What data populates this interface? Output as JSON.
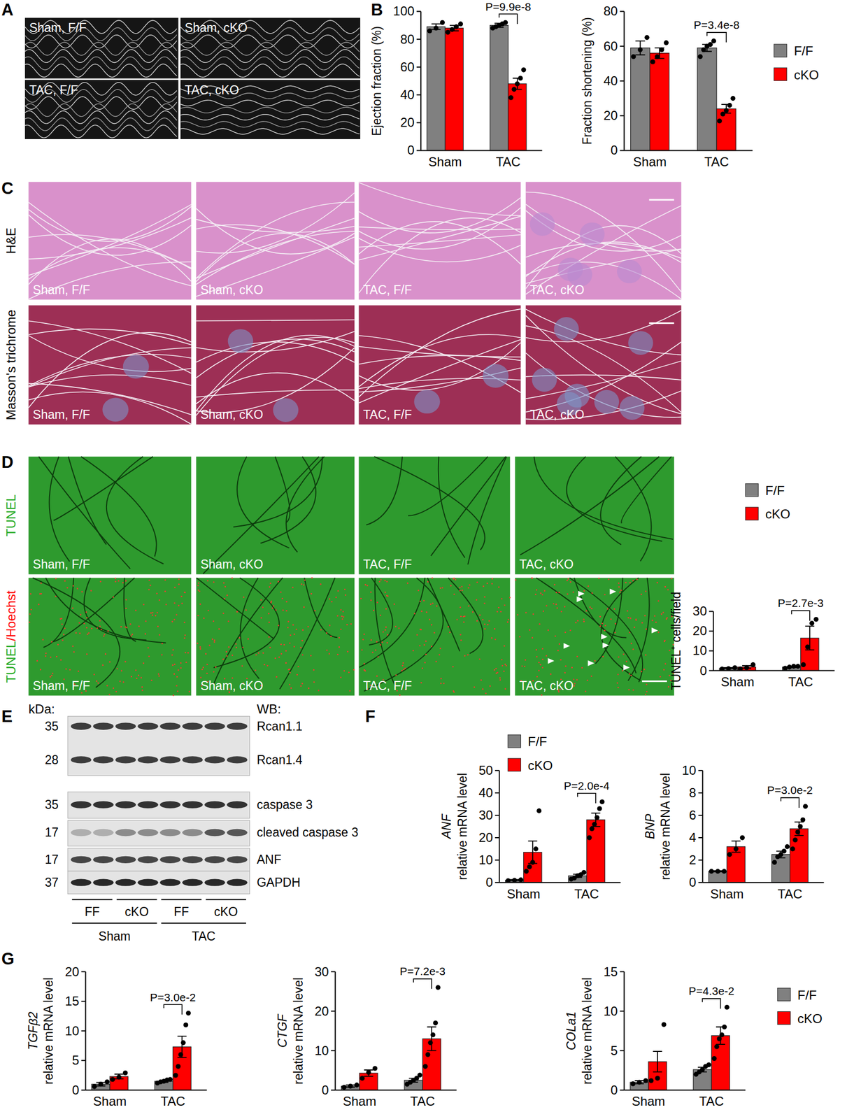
{
  "panel_letters": [
    "A",
    "B",
    "C",
    "D",
    "E",
    "F",
    "G"
  ],
  "panel_a": {
    "labels": [
      "Sham, F/F",
      "Sham, cKO",
      "TAC, F/F",
      "TAC, cKO"
    ]
  },
  "panel_c": {
    "rows": [
      {
        "label": "H&E",
        "images": [
          "Sham, F/F",
          "Sham, cKO",
          "TAC, F/F",
          "TAC, cKO"
        ]
      },
      {
        "label": "Masson's trichrome",
        "images": [
          "Sham, F/F",
          "Sham, cKO",
          "TAC, F/F",
          "TAC, cKO"
        ]
      }
    ]
  },
  "panel_d": {
    "rows": [
      {
        "label": [
          {
            "text": "TUNEL",
            "color": "#22aa22"
          }
        ],
        "images": [
          "Sham, F/F",
          "Sham, cKO",
          "TAC, F/F",
          "TAC, cKO"
        ]
      },
      {
        "label": [
          {
            "text": "TUNEL",
            "color": "#22aa22"
          },
          {
            "text": "/Hoechst",
            "color": "#ff0000"
          }
        ],
        "images": [
          "Sham, F/F",
          "Sham, cKO",
          "TAC, F/F",
          "TAC, cKO"
        ]
      }
    ]
  },
  "panel_e": {
    "kda_header": "kDa:",
    "wb_header": "WB:",
    "bands": [
      {
        "kda": "35",
        "label": "Rcan1.1"
      },
      {
        "kda": "28",
        "label": "Rcan1.4"
      },
      {
        "kda": "35",
        "label": "caspase 3"
      },
      {
        "kda": "17",
        "label": "cleaved caspase 3"
      },
      {
        "kda": "17",
        "label": "ANF"
      },
      {
        "kda": "37",
        "label": "GAPDH"
      }
    ],
    "lanes": [
      "FF",
      "cKO",
      "FF",
      "cKO"
    ],
    "groups": [
      "Sham",
      "TAC"
    ]
  },
  "chart_data": [
    {
      "type": "bar",
      "ylabel": "Ejection fraction (%)",
      "categories": [
        "Sham",
        "TAC"
      ],
      "ylim": [
        0,
        100
      ],
      "yticks": [
        0,
        20,
        40,
        60,
        80,
        100
      ],
      "series": [
        {
          "color": "#808080",
          "values": [
            89,
            90
          ],
          "errors": [
            2,
            1.5
          ],
          "points": [
            [
              86,
              88,
              92
            ],
            [
              88,
              89,
              90,
              91,
              92
            ]
          ]
        },
        {
          "color": "#ff0000",
          "values": [
            88,
            48
          ],
          "errors": [
            2,
            4
          ],
          "points": [
            [
              85,
              87,
              89,
              91
            ],
            [
              38,
              44,
              48,
              52,
              58
            ]
          ]
        }
      ],
      "annotations": [
        {
          "text": "P=9.9e-8",
          "category": "TAC"
        }
      ]
    },
    {
      "type": "bar",
      "ylabel": "Fraction shortening (%)",
      "categories": [
        "Sham",
        "TAC"
      ],
      "ylim": [
        0,
        80
      ],
      "yticks": [
        0,
        20,
        40,
        60,
        80
      ],
      "legend": "right",
      "series": [
        {
          "name": "F/F",
          "color": "#808080",
          "values": [
            59,
            59
          ],
          "errors": [
            4,
            2
          ],
          "points": [
            [
              54,
              58,
              65
            ],
            [
              54,
              58,
              60,
              61,
              63
            ]
          ]
        },
        {
          "name": "cKO",
          "color": "#ff0000",
          "values": [
            56,
            24
          ],
          "errors": [
            3,
            2.5
          ],
          "points": [
            [
              51,
              54,
              58,
              62
            ],
            [
              17,
              21,
              23,
              26,
              30
            ]
          ]
        }
      ],
      "annotations": [
        {
          "text": "P=3.4e-8",
          "category": "TAC"
        }
      ]
    },
    {
      "type": "bar",
      "ylabel": "TUNEL⁺ cells/field",
      "categories": [
        "Sham",
        "TAC"
      ],
      "ylim": [
        0,
        30
      ],
      "yticks": [
        0,
        10,
        20,
        30
      ],
      "legend": "top",
      "series": [
        {
          "name": "F/F",
          "color": "#808080",
          "values": [
            1.2,
            1.8
          ],
          "errors": [
            0.3,
            0.3
          ],
          "points": [
            [
              0.8,
              1.0,
              1.5
            ],
            [
              1.2,
              1.8,
              2.2,
              2.2
            ]
          ]
        },
        {
          "name": "cKO",
          "color": "#ff0000",
          "values": [
            1.8,
            16.5
          ],
          "errors": [
            0.7,
            6
          ],
          "points": [
            [
              0.9,
              1.5,
              3
            ],
            [
              3,
              12,
              24,
              26
            ]
          ]
        }
      ],
      "annotations": [
        {
          "text": "P=2.7e-3",
          "category": "TAC"
        }
      ]
    },
    {
      "type": "bar",
      "ylabel": [
        "ANF",
        "relative mRNA level"
      ],
      "categories": [
        "Sham",
        "TAC"
      ],
      "ylim": [
        0,
        50
      ],
      "yticks": [
        0,
        10,
        20,
        30,
        40,
        50
      ],
      "legend": "top",
      "series": [
        {
          "name": "F/F",
          "color": "#808080",
          "values": [
            1,
            3
          ],
          "errors": [
            0.3,
            0.7
          ],
          "points": [
            [
              0.8,
              1,
              1.2
            ],
            [
              1.5,
              2,
              3,
              3.5,
              4.5
            ]
          ]
        },
        {
          "name": "cKO",
          "color": "#ff0000",
          "values": [
            13.5,
            28
          ],
          "errors": [
            5,
            3
          ],
          "points": [
            [
              5,
              7,
              9,
              15,
              32
            ],
            [
              20,
              24,
              26,
              29,
              33,
              36
            ]
          ]
        }
      ],
      "annotations": [
        {
          "text": "P=2.0e-4",
          "category": "TAC"
        }
      ]
    },
    {
      "type": "bar",
      "ylabel": [
        "BNP",
        "relative mRNA level"
      ],
      "categories": [
        "Sham",
        "TAC"
      ],
      "ylim": [
        0,
        10
      ],
      "yticks": [
        0,
        2,
        4,
        6,
        8,
        10
      ],
      "series": [
        {
          "color": "#808080",
          "values": [
            1,
            2.5
          ],
          "errors": [
            0.05,
            0.3
          ],
          "points": [
            [
              1,
              1,
              1
            ],
            [
              1.8,
              2.3,
              2.5,
              2.8,
              3.2
            ]
          ]
        },
        {
          "color": "#ff0000",
          "values": [
            3.2,
            4.8
          ],
          "errors": [
            0.5,
            0.6
          ],
          "points": [
            [
              2.5,
              3.0,
              4.0
            ],
            [
              3,
              3.8,
              4.5,
              5,
              5.6,
              6.8
            ]
          ]
        }
      ],
      "annotations": [
        {
          "text": "P=3.0e-2",
          "category": "TAC"
        }
      ]
    },
    {
      "type": "bar",
      "ylabel": [
        "TGFβ2",
        "relative mRNA level"
      ],
      "categories": [
        "Sham",
        "TAC"
      ],
      "ylim": [
        0,
        20
      ],
      "yticks": [
        0,
        5,
        10,
        15,
        20
      ],
      "series": [
        {
          "color": "#808080",
          "values": [
            1,
            1.5
          ],
          "errors": [
            0.3,
            0.2
          ],
          "points": [
            [
              0.6,
              1,
              1.4
            ],
            [
              1.2,
              1.4,
              1.5,
              1.7,
              1.8
            ]
          ]
        },
        {
          "color": "#ff0000",
          "values": [
            2.3,
            7.3
          ],
          "errors": [
            0.4,
            1.8
          ],
          "points": [
            [
              1.8,
              2.2,
              2.9
            ],
            [
              2.5,
              4,
              6,
              8,
              11,
              13
            ]
          ]
        }
      ],
      "annotations": [
        {
          "text": "P=3.0e-2",
          "category": "TAC"
        }
      ]
    },
    {
      "type": "bar",
      "ylabel": [
        "CTGF",
        "relative mRNA level"
      ],
      "categories": [
        "Sham",
        "TAC"
      ],
      "ylim": [
        0,
        30
      ],
      "yticks": [
        0,
        10,
        20,
        30
      ],
      "series": [
        {
          "color": "#808080",
          "values": [
            1,
            2.5
          ],
          "errors": [
            0.3,
            0.5
          ],
          "points": [
            [
              0.7,
              1,
              1.3
            ],
            [
              1.5,
              2,
              2.5,
              3,
              3.8
            ]
          ]
        },
        {
          "color": "#ff0000",
          "values": [
            4.3,
            13
          ],
          "errors": [
            0.8,
            3
          ],
          "points": [
            [
              3,
              4.5,
              5.5
            ],
            [
              6,
              9,
              12,
              14,
              17,
              26
            ]
          ]
        }
      ],
      "annotations": [
        {
          "text": "P=7.2e-3",
          "category": "TAC"
        }
      ]
    },
    {
      "type": "bar",
      "ylabel": [
        "COLa1",
        "relative mRNA level"
      ],
      "categories": [
        "Sham",
        "TAC"
      ],
      "ylim": [
        0,
        15
      ],
      "yticks": [
        0,
        5,
        10,
        15
      ],
      "legend": "right",
      "series": [
        {
          "name": "F/F",
          "color": "#808080",
          "values": [
            1,
            2.6
          ],
          "errors": [
            0.2,
            0.3
          ],
          "points": [
            [
              0.8,
              1,
              1.2
            ],
            [
              2,
              2.3,
              2.6,
              3,
              3.2
            ]
          ]
        },
        {
          "name": "cKO",
          "color": "#ff0000",
          "values": [
            3.6,
            6.9
          ],
          "errors": [
            1.3,
            1.1
          ],
          "points": [
            [
              1.2,
              1.5,
              8.3
            ],
            [
              4,
              5.5,
              6.5,
              7,
              8,
              10.5
            ]
          ]
        }
      ],
      "annotations": [
        {
          "text": "P=4.3e-2",
          "category": "TAC"
        }
      ]
    }
  ]
}
